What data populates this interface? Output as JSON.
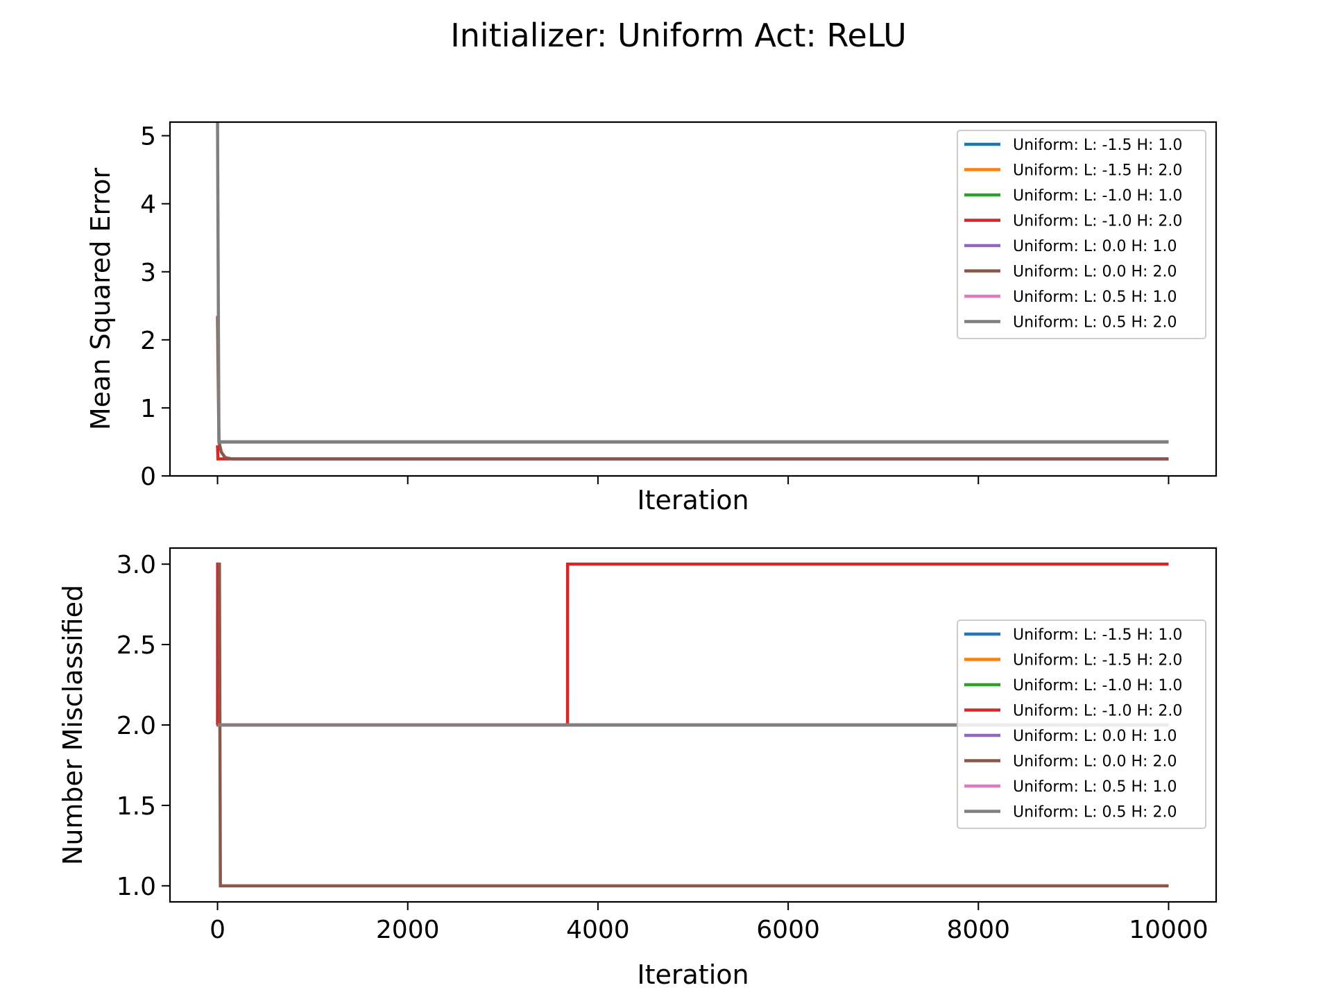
{
  "title": "Initializer: Uniform Act: ReLU",
  "legend_location": "top-right / center-right",
  "chart_data": [
    {
      "type": "line",
      "xlabel": "Iteration",
      "ylabel": "Mean Squared Error",
      "xlim": [
        -500,
        10500
      ],
      "ylim": [
        0,
        5.2
      ],
      "xticks": [
        0,
        2000,
        4000,
        6000,
        8000,
        10000
      ],
      "show_xtick_labels": false,
      "yticks": [
        0,
        1,
        2,
        3,
        4,
        5
      ],
      "ytick_labels": [
        "0",
        "1",
        "2",
        "3",
        "4",
        "5"
      ],
      "legend_position": "top-right",
      "series": [
        {
          "name": "Uniform: L: -1.5 H: 1.0",
          "color": "#1f77b4",
          "points": [
            [
              0,
              0.5
            ],
            [
              10000,
              0.5
            ]
          ]
        },
        {
          "name": "Uniform: L: -1.5 H: 2.0",
          "color": "#ff7f0e",
          "points": [
            [
              0,
              0.5
            ],
            [
              10000,
              0.5
            ]
          ]
        },
        {
          "name": "Uniform: L: -1.0 H: 1.0",
          "color": "#2ca02c",
          "points": [
            [
              0,
              0.5
            ],
            [
              10000,
              0.5
            ]
          ]
        },
        {
          "name": "Uniform: L: -1.0 H: 2.0",
          "color": "#d62728",
          "points": [
            [
              0,
              0.45
            ],
            [
              5,
              0.25
            ],
            [
              10000,
              0.25
            ]
          ]
        },
        {
          "name": "Uniform: L: 0.0 H: 1.0",
          "color": "#9467bd",
          "points": [
            [
              0,
              0.5
            ],
            [
              10000,
              0.5
            ]
          ]
        },
        {
          "name": "Uniform: L: 0.0 H: 2.0",
          "color": "#8c564b",
          "points": [
            [
              0,
              2.35
            ],
            [
              15,
              0.5
            ],
            [
              40,
              0.35
            ],
            [
              80,
              0.27
            ],
            [
              150,
              0.25
            ],
            [
              10000,
              0.25
            ]
          ]
        },
        {
          "name": "Uniform: L: 0.5 H: 1.0",
          "color": "#e377c2",
          "points": [
            [
              0,
              0.5
            ],
            [
              10000,
              0.5
            ]
          ]
        },
        {
          "name": "Uniform: L: 0.5 H: 2.0",
          "color": "#7f7f7f",
          "points": [
            [
              0,
              5.2
            ],
            [
              15,
              0.5
            ],
            [
              10000,
              0.5
            ]
          ]
        }
      ]
    },
    {
      "type": "line",
      "xlabel": "Iteration",
      "ylabel": "Number Misclassified",
      "xlim": [
        -500,
        10500
      ],
      "ylim": [
        0.9,
        3.1
      ],
      "xticks": [
        0,
        2000,
        4000,
        6000,
        8000,
        10000
      ],
      "xtick_labels": [
        "0",
        "2000",
        "4000",
        "6000",
        "8000",
        "10000"
      ],
      "show_xtick_labels": true,
      "yticks": [
        1.0,
        1.5,
        2.0,
        2.5,
        3.0
      ],
      "ytick_labels": [
        "1.0",
        "1.5",
        "2.0",
        "2.5",
        "3.0"
      ],
      "legend_position": "center-right",
      "series": [
        {
          "name": "Uniform: L: -1.5 H: 1.0",
          "color": "#1f77b4",
          "points": [
            [
              0,
              2.0
            ],
            [
              10000,
              2.0
            ]
          ]
        },
        {
          "name": "Uniform: L: -1.5 H: 2.0",
          "color": "#ff7f0e",
          "points": [
            [
              0,
              2.0
            ],
            [
              10000,
              2.0
            ]
          ]
        },
        {
          "name": "Uniform: L: -1.0 H: 1.0",
          "color": "#2ca02c",
          "points": [
            [
              0,
              2.0
            ],
            [
              10000,
              2.0
            ]
          ]
        },
        {
          "name": "Uniform: L: -1.0 H: 2.0",
          "color": "#d62728",
          "points": [
            [
              0,
              2.0
            ],
            [
              1,
              3.0
            ],
            [
              5,
              3.0
            ],
            [
              6,
              2.0
            ],
            [
              3680,
              2.0
            ],
            [
              3681,
              3.0
            ],
            [
              10000,
              3.0
            ]
          ]
        },
        {
          "name": "Uniform: L: 0.0 H: 1.0",
          "color": "#9467bd",
          "points": [
            [
              0,
              2.0
            ],
            [
              10000,
              2.0
            ]
          ]
        },
        {
          "name": "Uniform: L: 0.0 H: 2.0",
          "color": "#8c564b",
          "points": [
            [
              0,
              3.0
            ],
            [
              20,
              3.0
            ],
            [
              30,
              1.0
            ],
            [
              10000,
              1.0
            ]
          ]
        },
        {
          "name": "Uniform: L: 0.5 H: 1.0",
          "color": "#e377c2",
          "points": [
            [
              0,
              2.0
            ],
            [
              10000,
              2.0
            ]
          ]
        },
        {
          "name": "Uniform: L: 0.5 H: 2.0",
          "color": "#7f7f7f",
          "points": [
            [
              0,
              2.0
            ],
            [
              10000,
              2.0
            ]
          ]
        }
      ]
    }
  ]
}
